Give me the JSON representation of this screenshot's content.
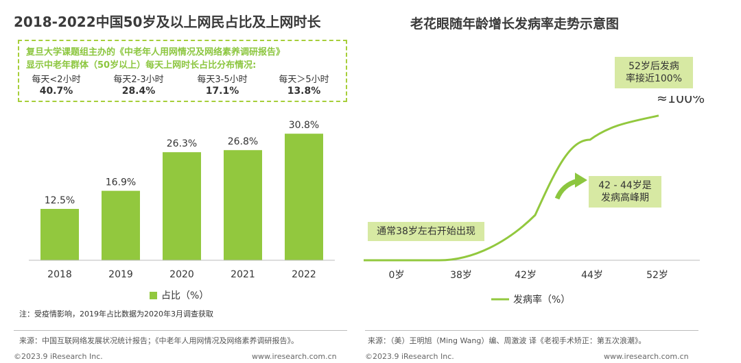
{
  "left_title": "2018-2022中国50岁及以上网民占比及上网时长",
  "right_title": "老花眼随年龄增长发病率走势示意图",
  "info_box": {
    "line1": "复旦大学课题组主办的《中老年人用网情况及网络素养调研报告》",
    "line2": "显示中老年群体（50岁以上）每天上网时长占比分布情况:",
    "stats": [
      {
        "label": "每天<2小时",
        "value": "40.7%"
      },
      {
        "label": "每天2-3小时",
        "value": "28.4%"
      },
      {
        "label": "每天3-5小时",
        "value": "17.1%"
      },
      {
        "label": "每天＞5小时",
        "value": "13.8%"
      }
    ]
  },
  "chart_data": [
    {
      "type": "bar",
      "categories": [
        "2018",
        "2019",
        "2020",
        "2021",
        "2022"
      ],
      "values": [
        12.5,
        16.9,
        26.3,
        26.8,
        30.8
      ],
      "value_labels": [
        "12.5%",
        "16.9%",
        "26.3%",
        "26.8%",
        "30.8%"
      ],
      "legend": "占比（%）",
      "ylim": [
        0,
        35
      ],
      "color": "#92c83e"
    },
    {
      "type": "line",
      "x": [
        "0岁",
        "38岁",
        "42岁",
        "44岁",
        "52岁"
      ],
      "series": [
        {
          "name": "发病率（%）",
          "values": [
            0,
            2,
            40,
            85,
            100
          ]
        }
      ],
      "ylim": [
        0,
        100
      ],
      "legend": "发病率（%）",
      "annotations": {
        "start": "通常38岁左右开始出现",
        "peak_line1": "42 - 44岁是",
        "peak_line2": "发病高峰期",
        "end_line1": "52岁后发病",
        "end_line2": "率接近100%",
        "end_value": "≈100%"
      },
      "color": "#92c83e"
    }
  ],
  "note": "注：受疫情影响，2019年占比数据为2020年3月调查获取",
  "source_left": "来源：中国互联网络发展状况统计报告；《中老年人用网情况及网络素养调研报告》。",
  "source_right": "来源：（美）王明旭（Ming Wang）编、周激波 译《老视手术矫正：第五次浪潮》。",
  "copyright": "©2023.9 iResearch Inc.",
  "website": "www.iresearch.com.cn"
}
